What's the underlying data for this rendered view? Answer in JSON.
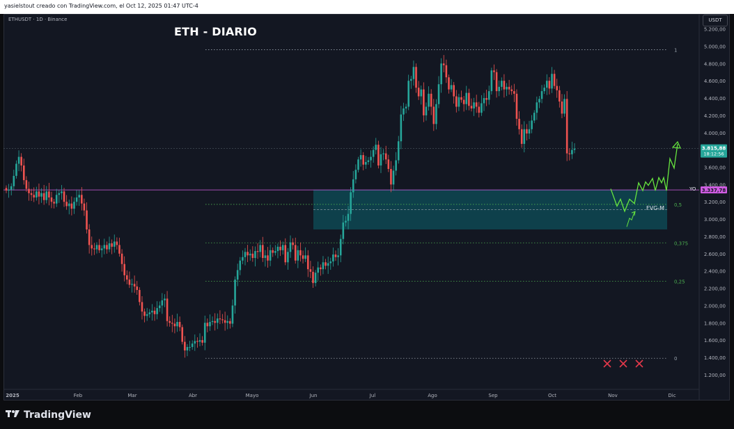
{
  "header": {
    "attribution": "yasielstout creado con TradingView.com, el Oct 12, 2025 01:47 UTC-4",
    "ticker_line": "ETHUSDT · 1D · Binance",
    "currency_button": "USDT"
  },
  "footer": {
    "brand": "TradingView"
  },
  "annotations": {
    "yo_label": "YO",
    "fvg_label": "FVG-M"
  },
  "colors": {
    "up": "#26a69a",
    "down": "#ef5350",
    "fib": "#4caf50",
    "projection": "#67e63f",
    "zone": "#0e4f5a",
    "yo_line": "#d05ce3",
    "cross": "#e5384b"
  },
  "chart_data": {
    "type": "candlestick",
    "title": "ETH - DIARIO",
    "symbol": "ETHUSDT",
    "timeframe": "1D",
    "exchange": "Binance",
    "currency": "USDT",
    "x_ticks": [
      "2025",
      "Feb",
      "Mar",
      "Abr",
      "Mayo",
      "Jun",
      "Jul",
      "Ago",
      "Sep",
      "Oct",
      "Nov",
      "Dic"
    ],
    "y_ticks": [
      "5.200,00",
      "5.000,00",
      "4.800,00",
      "4.600,00",
      "4.400,00",
      "4.200,00",
      "4.000,00",
      "3.800,00",
      "3.600,00",
      "3.400,00",
      "3.200,00",
      "3.000,00",
      "2.800,00",
      "2.600,00",
      "2.400,00",
      "2.200,00",
      "2.000,00",
      "1.800,00",
      "1.600,00",
      "1.400,00",
      "1.200,00"
    ],
    "ylim": [
      1100,
      5300
    ],
    "close_chart": [
      3330,
      3340,
      3380,
      3500,
      3640,
      3720,
      3620,
      3450,
      3350,
      3300,
      3280,
      3250,
      3320,
      3260,
      3300,
      3220,
      3320,
      3250,
      3200,
      3180,
      3280,
      3300,
      3320,
      3200,
      3150,
      3180,
      3120,
      3200,
      3250,
      3280,
      3180,
      3100,
      2880,
      2700,
      2660,
      2650,
      2700,
      2640,
      2660,
      2700,
      2650,
      2720,
      2680,
      2740,
      2700,
      2600,
      2480,
      2350,
      2300,
      2240,
      2250,
      2220,
      2180,
      2040,
      1930,
      1880,
      1900,
      1920,
      1940,
      1900,
      1970,
      2000,
      2060,
      2080,
      1820,
      1800,
      1790,
      1760,
      1810,
      1750,
      1580,
      1480,
      1520,
      1520,
      1560,
      1590,
      1580,
      1600,
      1570,
      1800,
      1760,
      1810,
      1820,
      1800,
      1850,
      1840,
      1830,
      1800,
      1820,
      1790,
      2000,
      2300,
      2410,
      2520,
      2560,
      2620,
      2580,
      2600,
      2550,
      2630,
      2620,
      2700,
      2550,
      2580,
      2520,
      2640,
      2610,
      2630,
      2680,
      2640,
      2700,
      2500,
      2620,
      2730,
      2700,
      2520,
      2640,
      2580,
      2540,
      2580,
      2420,
      2390,
      2260,
      2380,
      2440,
      2420,
      2500,
      2460,
      2490,
      2510,
      2590,
      2560,
      2580,
      2770,
      2960,
      2980,
      3060,
      3310,
      3460,
      3570,
      3690,
      3740,
      3630,
      3660,
      3680,
      3720,
      3800,
      3860,
      3620,
      3750,
      3760,
      3690,
      3580,
      3400,
      3560,
      3680,
      3900,
      4210,
      4280,
      4300,
      4600,
      4620,
      4760,
      4520,
      4420,
      4500,
      4200,
      4300,
      4450,
      4300,
      4100,
      4330,
      4560,
      4800,
      4780,
      4640,
      4500,
      4550,
      4420,
      4300,
      4410,
      4380,
      4330,
      4460,
      4310,
      4280,
      4350,
      4300,
      4230,
      4340,
      4400,
      4380,
      4480,
      4720,
      4700,
      4480,
      4530,
      4600,
      4500,
      4530,
      4500,
      4480,
      4450,
      4160,
      4040,
      3870,
      4040,
      3990,
      4040,
      4140,
      4230,
      4350,
      4390,
      4480,
      4520,
      4600,
      4510,
      4680,
      4540,
      4490,
      4360,
      4220,
      4390,
      3760,
      3750,
      3800,
      3815.88
    ],
    "last_price": "3.815,88",
    "countdown": "18:12:56",
    "horizontal_level": {
      "label": "YO",
      "price": "3.337,78"
    },
    "fib_levels": [
      {
        "ratio": "1",
        "price": 4960
      },
      {
        "ratio": "0,5",
        "price": 3170
      },
      {
        "ratio": "0,375",
        "price": 2725
      },
      {
        "ratio": "0,25",
        "price": 2280
      },
      {
        "ratio": "0",
        "price": 1390
      }
    ],
    "zone": {
      "label": "FVG-M",
      "from_price": 2880,
      "to_price": 3340
    },
    "projection_path_prices": [
      3350,
      3150,
      3230,
      3090,
      3230,
      3180,
      3420,
      3330,
      3430,
      3390,
      3470,
      3330,
      3480,
      3420,
      3480,
      3330,
      3700,
      3590,
      3870
    ],
    "alt_projection_prices": [
      2910,
      3080
    ],
    "crosses": 3
  }
}
